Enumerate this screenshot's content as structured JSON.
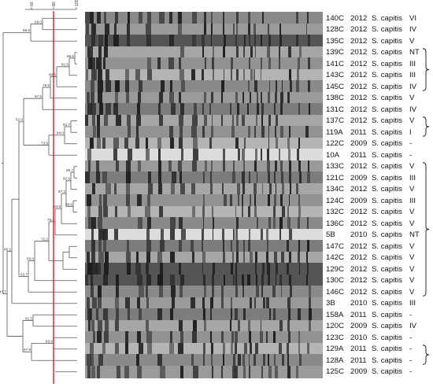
{
  "scale": {
    "ticks": [
      "60",
      "80",
      "100"
    ]
  },
  "rows": [
    {
      "isolate": "140C",
      "year": "2012",
      "species": "S. capitis",
      "type": "VI"
    },
    {
      "isolate": "128C",
      "year": "2012",
      "species": "S. capitis",
      "type": "IV"
    },
    {
      "isolate": "135C",
      "year": "2012",
      "species": "S. capitis",
      "type": "V"
    },
    {
      "isolate": "139C",
      "year": "2012",
      "species": "S. capitis",
      "type": "NT"
    },
    {
      "isolate": "141C",
      "year": "2012",
      "species": "S. capitis",
      "type": "III"
    },
    {
      "isolate": "143C",
      "year": "2012",
      "species": "S. capitis",
      "type": "III"
    },
    {
      "isolate": "145C",
      "year": "2012",
      "species": "S. capitis",
      "type": "IV"
    },
    {
      "isolate": "138C",
      "year": "2012",
      "species": "S. capitis",
      "type": "V"
    },
    {
      "isolate": "131C",
      "year": "2012",
      "species": "S. capitis",
      "type": "IV"
    },
    {
      "isolate": "137C",
      "year": "2012",
      "species": "S. capitis",
      "type": "V"
    },
    {
      "isolate": "119A",
      "year": "2011",
      "species": "S. capitis",
      "type": "I"
    },
    {
      "isolate": "122C",
      "year": "2009",
      "species": "S. capitis",
      "type": "-"
    },
    {
      "isolate": "10A",
      "year": "2011",
      "species": "S. capitis",
      "type": "-"
    },
    {
      "isolate": "133C",
      "year": "2012",
      "species": "S. capitis",
      "type": "V"
    },
    {
      "isolate": "121C",
      "year": "2009",
      "species": "S. capitis",
      "type": "III"
    },
    {
      "isolate": "134C",
      "year": "2012",
      "species": "S. capitis",
      "type": "V"
    },
    {
      "isolate": "124C",
      "year": "2009",
      "species": "S. capitis",
      "type": "III"
    },
    {
      "isolate": "132C",
      "year": "2012",
      "species": "S. capitis",
      "type": "V"
    },
    {
      "isolate": "136C",
      "year": "2012",
      "species": "S. capitis",
      "type": "V"
    },
    {
      "isolate": "5B",
      "year": "2010",
      "species": "S. capitis",
      "type": "NT"
    },
    {
      "isolate": "147C",
      "year": "2012",
      "species": "S. capitis",
      "type": "V"
    },
    {
      "isolate": "142C",
      "year": "2012",
      "species": "S. capitis",
      "type": "V"
    },
    {
      "isolate": "129C",
      "year": "2012",
      "species": "S. capitis",
      "type": "V"
    },
    {
      "isolate": "130C",
      "year": "2012",
      "species": "S. capitis",
      "type": "V"
    },
    {
      "isolate": "146C",
      "year": "2012",
      "species": "S. capitis",
      "type": "V"
    },
    {
      "isolate": "3B",
      "year": "2010",
      "species": "S. capitis",
      "type": "III"
    },
    {
      "isolate": "158A",
      "year": "2011",
      "species": "S. capitis",
      "type": "-"
    },
    {
      "isolate": "120C",
      "year": "2009",
      "species": "S. capitis",
      "type": "IV"
    },
    {
      "isolate": "123C",
      "year": "2010",
      "species": "S. capitis",
      "type": "-"
    },
    {
      "isolate": "129A",
      "year": "2011",
      "species": "S. capitis",
      "type": "-"
    },
    {
      "isolate": "128A",
      "year": "2011",
      "species": "S. capitis",
      "type": "-"
    },
    {
      "isolate": "125C",
      "year": "2009",
      "species": "S. capitis",
      "type": "-"
    }
  ],
  "node_labels": [
    "69.0",
    "58.6",
    "96.6",
    "91.5",
    "80.6",
    "78.5",
    "67.5",
    "52.0",
    "91.7",
    "84.0",
    "73.6",
    "63.7",
    "95.7",
    "92.9",
    "96.6",
    "87.3",
    "84.8",
    "76.2",
    "72.2",
    "50.0",
    "48.2",
    "81.5",
    "83.0",
    "67.9",
    "43.7"
  ],
  "colors": {
    "cutoff_line": "#e0191a",
    "tree_line": "#555555",
    "gel_background": "#8c8c8c",
    "band": "#1a1a1a"
  }
}
